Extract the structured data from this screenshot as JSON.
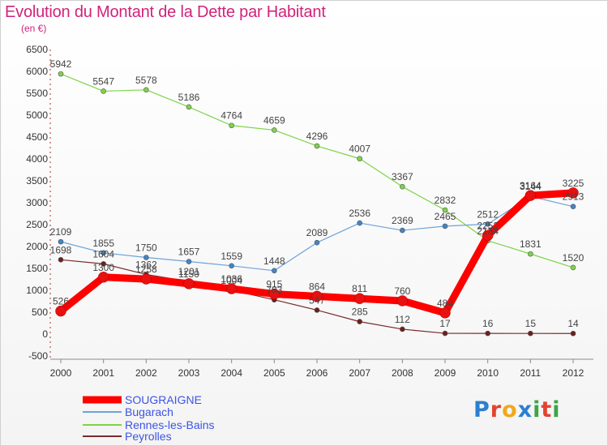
{
  "header": {
    "title": "Evolution du Montant de la Dette par Habitant",
    "subtitle": "(en €)"
  },
  "logo": {
    "text": "Proxiti",
    "colors": [
      "#2a7fd0",
      "#e2442f",
      "#f0a81c",
      "#2a7fd0",
      "#3aa645",
      "#e2442f",
      "#3aa645"
    ]
  },
  "chart_data": {
    "type": "line",
    "title": "Evolution du Montant de la Dette par Habitant",
    "subtitle": "(en €)",
    "xlabel": "",
    "ylabel": "",
    "x": [
      "2000",
      "2001",
      "2002",
      "2003",
      "2004",
      "2005",
      "2006",
      "2007",
      "2008",
      "2009",
      "2010",
      "2011",
      "2012"
    ],
    "ylim": [
      -500,
      6500
    ],
    "yticks": [
      -500,
      0,
      500,
      1000,
      1500,
      2000,
      2500,
      3000,
      3500,
      4000,
      4500,
      5000,
      5500,
      6000,
      6500
    ],
    "grid": false,
    "legend_position": "bottom-left",
    "series": [
      {
        "name": "Rennes-les-Bains",
        "color": "#7ed348",
        "marker": "#7ed348",
        "width": 1.2,
        "values": [
          5942,
          5547,
          5578,
          5186,
          4764,
          4659,
          4296,
          4007,
          3367,
          2832,
          2134,
          1831,
          1520
        ],
        "labels": [
          "5942",
          "5547",
          "5578",
          "5186",
          "4764",
          "4659",
          "4296",
          "4007",
          "3367",
          "2832",
          "2134",
          "1831",
          "1520"
        ]
      },
      {
        "name": "Bugarach",
        "color": "#6ea3d6",
        "marker": "#3f86c9",
        "width": 1.2,
        "values": [
          2109,
          1855,
          1750,
          1657,
          1559,
          1448,
          2089,
          2536,
          2369,
          2465,
          2512,
          3144,
          2913
        ],
        "labels": [
          "2109",
          "1855",
          "1750",
          "1657",
          "1559",
          "1448",
          "2089",
          "2536",
          "2369",
          "2465",
          "2512",
          "3144",
          "2913"
        ]
      },
      {
        "name": "Peyrolles",
        "color": "#7a2b2b",
        "marker": "#6b1f1f",
        "width": 1.2,
        "values": [
          1698,
          1604,
          1362,
          1201,
          1004,
          783,
          547,
          285,
          112,
          17,
          16,
          15,
          14
        ],
        "labels": [
          "1698",
          "1604",
          "1362",
          "1201",
          "1004",
          "783",
          "547",
          "285",
          "112",
          "17",
          "16",
          "15",
          "14"
        ]
      },
      {
        "name": "SOUGRAIGNE",
        "color": "#ff0000",
        "marker": "#e81010",
        "width": 9,
        "values": [
          526,
          1300,
          1258,
          1150,
          1036,
          915,
          864,
          811,
          760,
          484,
          2252,
          3164,
          3225
        ],
        "labels": [
          "526",
          "1300",
          "1258",
          "1150",
          "1036",
          "915",
          "864",
          "811",
          "760",
          "484",
          "2252",
          "3164",
          "3225"
        ]
      }
    ],
    "legend": [
      "SOUGRAIGNE",
      "Bugarach",
      "Rennes-les-Bains",
      "Peyrolles"
    ],
    "legend_text_color": "#3c54e6"
  }
}
